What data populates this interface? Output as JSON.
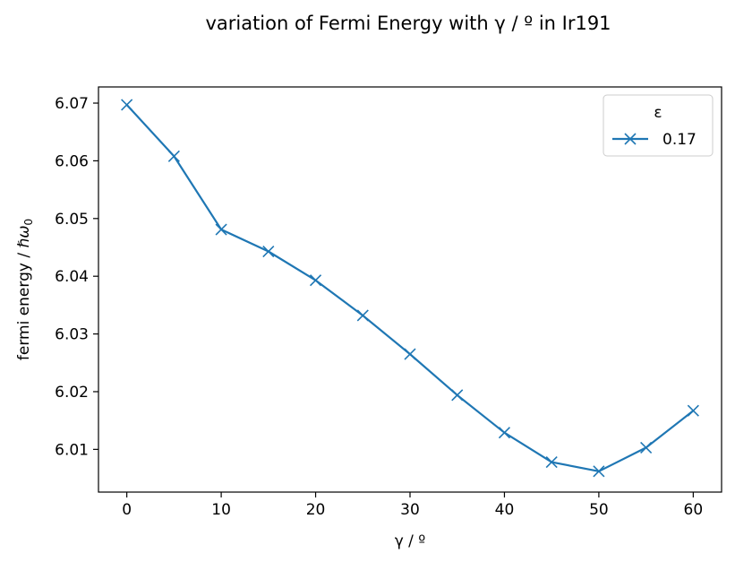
{
  "chart_data": {
    "type": "line",
    "title": "variation of Fermi Energy with γ / º in Ir191",
    "xlabel": "γ / º",
    "ylabel": "fermi energy / ",
    "ylabel_symbol": "ℏω",
    "ylabel_subscript": "0",
    "xlim": [
      -3,
      63
    ],
    "ylim": [
      6.0026,
      6.0728
    ],
    "xticks": [
      0,
      10,
      20,
      30,
      40,
      50,
      60
    ],
    "yticks": [
      6.01,
      6.02,
      6.03,
      6.04,
      6.05,
      6.06,
      6.07
    ],
    "xtick_labels": [
      "0",
      "10",
      "20",
      "30",
      "40",
      "50",
      "60"
    ],
    "ytick_labels": [
      "6.01",
      "6.02",
      "6.03",
      "6.04",
      "6.05",
      "6.06",
      "6.07"
    ],
    "grid": false,
    "legend": {
      "title": "ε",
      "position": "top-right"
    },
    "series": [
      {
        "name": "0.17",
        "color": "#1f77b4",
        "marker": "x",
        "x": [
          0,
          5,
          10,
          15,
          20,
          25,
          30,
          35,
          40,
          45,
          50,
          55,
          60
        ],
        "y": [
          6.0697,
          6.0608,
          6.0481,
          6.0443,
          6.0393,
          6.0332,
          6.0265,
          6.0194,
          6.0129,
          6.0078,
          6.0062,
          6.0103,
          6.0167
        ]
      }
    ]
  }
}
